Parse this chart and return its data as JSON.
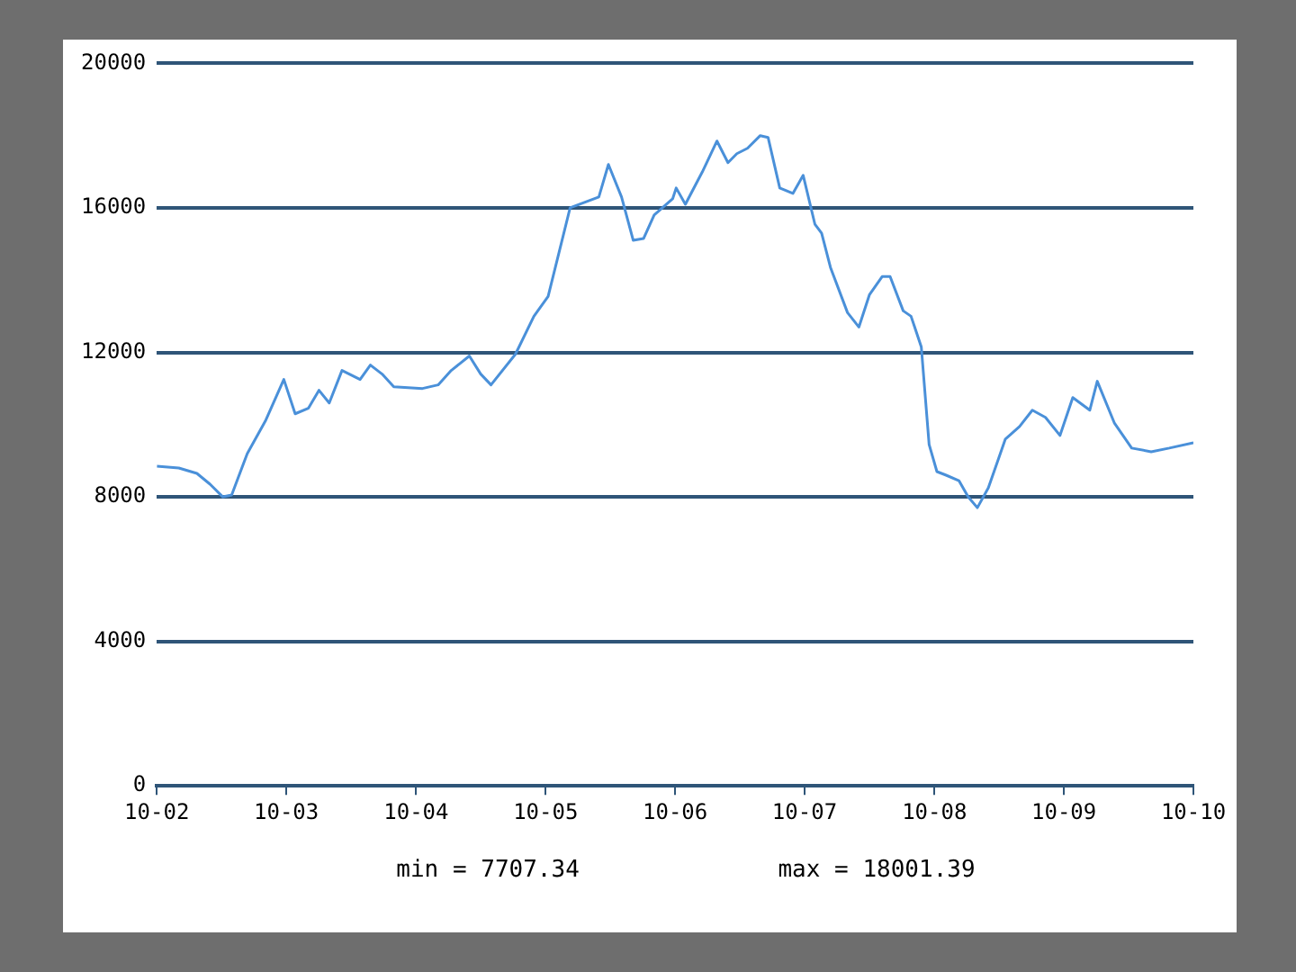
{
  "chart_data": {
    "type": "line",
    "x": [
      "2002-10-01",
      "2002-12-02",
      "2003-01-22",
      "2003-02-28",
      "2003-04-05",
      "2003-04-30",
      "2003-06-13",
      "2003-08-03",
      "2003-09-24",
      "2003-10-26",
      "2003-12-02",
      "2004-01-01",
      "2004-01-30",
      "2004-03-06",
      "2004-04-26",
      "2004-05-25",
      "2004-06-27",
      "2004-07-30",
      "2004-10-19",
      "2004-12-02",
      "2005-01-08",
      "2005-02-28",
      "2005-04-01",
      "2005-04-30",
      "2005-07-08",
      "2005-08-29",
      "2005-10-08",
      "2005-12-09",
      "2006-02-28",
      "2006-03-27",
      "2006-05-03",
      "2006-06-05",
      "2006-07-04",
      "2006-08-03",
      "2006-09-24",
      "2006-10-04",
      "2006-10-30",
      "2006-12-17",
      "2007-01-27",
      "2007-02-27",
      "2007-03-24",
      "2007-04-23",
      "2007-05-29",
      "2007-06-20",
      "2007-07-23",
      "2007-08-29",
      "2007-09-27",
      "2007-10-30",
      "2007-11-18",
      "2007-12-13",
      "2008-01-30",
      "2008-03-02",
      "2008-04-01",
      "2008-05-07",
      "2008-05-29",
      "2008-07-05",
      "2008-07-27",
      "2008-08-25",
      "2008-09-16",
      "2008-10-08",
      "2008-11-03",
      "2008-12-09",
      "2009-01-04",
      "2009-01-30",
      "2009-03-02",
      "2009-04-19",
      "2009-05-29",
      "2009-07-04",
      "2009-08-10",
      "2009-09-20",
      "2009-10-26",
      "2009-12-13",
      "2010-01-03",
      "2010-02-20",
      "2010-04-10",
      "2010-06-04",
      "2010-07-25",
      "2010-10-01"
    ],
    "series": [
      {
        "color": "#4a90d9",
        "values": [
          8850,
          8800,
          8650,
          8350,
          8000,
          8050,
          9200,
          10100,
          11250,
          10300,
          10450,
          10950,
          10600,
          11500,
          11250,
          11650,
          11400,
          11050,
          11000,
          11100,
          11500,
          11900,
          11400,
          11100,
          11950,
          13000,
          13550,
          16000,
          16300,
          17200,
          16300,
          15100,
          15150,
          15800,
          16250,
          16550,
          16100,
          17000,
          17850,
          17250,
          17500,
          17650,
          18000,
          17950,
          16550,
          16400,
          16900,
          15550,
          15300,
          14350,
          13100,
          12700,
          13600,
          14100,
          14100,
          13150,
          13000,
          12150,
          9450,
          8700,
          8600,
          8450,
          8000,
          7700,
          8250,
          9600,
          9950,
          10400,
          10200,
          9700,
          10750,
          10400,
          11200,
          10050,
          9350,
          9250,
          9350,
          9500
        ]
      }
    ],
    "xlim": [
      "2002-10-01",
      "2010-10-01"
    ],
    "xticks": [
      {
        "value": "2002-10-01",
        "label": "10-02"
      },
      {
        "value": "2003-10-01",
        "label": "10-03"
      },
      {
        "value": "2004-10-01",
        "label": "10-04"
      },
      {
        "value": "2005-10-01",
        "label": "10-05"
      },
      {
        "value": "2006-10-01",
        "label": "10-06"
      },
      {
        "value": "2007-10-01",
        "label": "10-07"
      },
      {
        "value": "2008-10-01",
        "label": "10-08"
      },
      {
        "value": "2009-10-01",
        "label": "10-09"
      },
      {
        "value": "2010-10-01",
        "label": "10-10"
      }
    ],
    "ylim": [
      0,
      20000
    ],
    "yticks": [
      0,
      4000,
      8000,
      12000,
      16000,
      20000
    ],
    "grid": "y",
    "marker": "none",
    "line_style": "solid",
    "annotations": [
      "min = 7707.34",
      "max = 18001.39"
    ]
  }
}
